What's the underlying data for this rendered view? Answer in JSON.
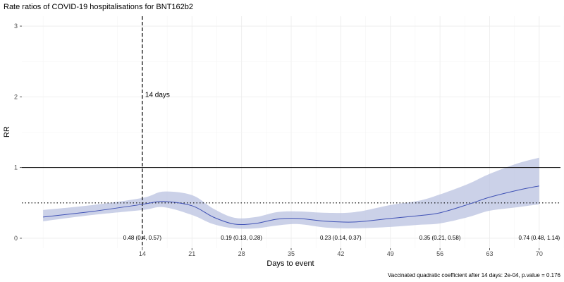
{
  "chart_data": {
    "type": "line",
    "title": "Rate ratios of COVID-19 hospitalisations for BNT162b2",
    "xlabel": "Days to event",
    "ylabel": "RR",
    "caption": "Vaccinated quadratic coefficient after 14 days: 2e-04, p.value = 0.176",
    "xlim": [
      -3,
      73
    ],
    "ylim": [
      -0.14,
      3.14
    ],
    "x_ticks": [
      14,
      21,
      28,
      35,
      42,
      49,
      56,
      63,
      70
    ],
    "y_ticks": [
      0,
      1,
      2,
      3
    ],
    "grid": true,
    "series": [
      {
        "color": "#3f51b5",
        "band_color": "#b9c2e0",
        "points": [
          {
            "x": 0,
            "y": 0.3,
            "lo": 0.24,
            "hi": 0.4
          },
          {
            "x": 7,
            "y": 0.38,
            "lo": 0.33,
            "hi": 0.47
          },
          {
            "x": 14,
            "y": 0.48,
            "lo": 0.4,
            "hi": 0.57
          },
          {
            "x": 17,
            "y": 0.52,
            "lo": 0.44,
            "hi": 0.66
          },
          {
            "x": 21,
            "y": 0.46,
            "lo": 0.33,
            "hi": 0.61
          },
          {
            "x": 24,
            "y": 0.3,
            "lo": 0.2,
            "hi": 0.42
          },
          {
            "x": 27,
            "y": 0.2,
            "lo": 0.14,
            "hi": 0.29
          },
          {
            "x": 30,
            "y": 0.21,
            "lo": 0.14,
            "hi": 0.3
          },
          {
            "x": 33,
            "y": 0.27,
            "lo": 0.18,
            "hi": 0.37
          },
          {
            "x": 36,
            "y": 0.28,
            "lo": 0.2,
            "hi": 0.38
          },
          {
            "x": 40,
            "y": 0.24,
            "lo": 0.15,
            "hi": 0.36
          },
          {
            "x": 44,
            "y": 0.23,
            "lo": 0.14,
            "hi": 0.37
          },
          {
            "x": 49,
            "y": 0.28,
            "lo": 0.16,
            "hi": 0.47
          },
          {
            "x": 53,
            "y": 0.32,
            "lo": 0.19,
            "hi": 0.53
          },
          {
            "x": 56,
            "y": 0.36,
            "lo": 0.21,
            "hi": 0.62
          },
          {
            "x": 60,
            "y": 0.48,
            "lo": 0.3,
            "hi": 0.77
          },
          {
            "x": 63,
            "y": 0.58,
            "lo": 0.39,
            "hi": 0.91
          },
          {
            "x": 67,
            "y": 0.68,
            "lo": 0.44,
            "hi": 1.06
          },
          {
            "x": 70,
            "y": 0.74,
            "lo": 0.48,
            "hi": 1.14
          }
        ]
      }
    ],
    "reference_lines": [
      {
        "axis": "y",
        "value": 1,
        "style": "solid"
      },
      {
        "axis": "y",
        "value": 0.5,
        "style": "dotted"
      },
      {
        "axis": "x",
        "value": 14,
        "style": "dashed",
        "label": "14 days"
      }
    ],
    "annotations": [
      {
        "x": 14,
        "text": "0.48 (0.4, 0.57)"
      },
      {
        "x": 28,
        "text": "0.19 (0.13, 0.28)"
      },
      {
        "x": 42,
        "text": "0.23 (0.14, 0.37)"
      },
      {
        "x": 56,
        "text": "0.35 (0.21, 0.58)"
      },
      {
        "x": 70,
        "text": "0.74 (0.48, 1.14)"
      }
    ]
  }
}
